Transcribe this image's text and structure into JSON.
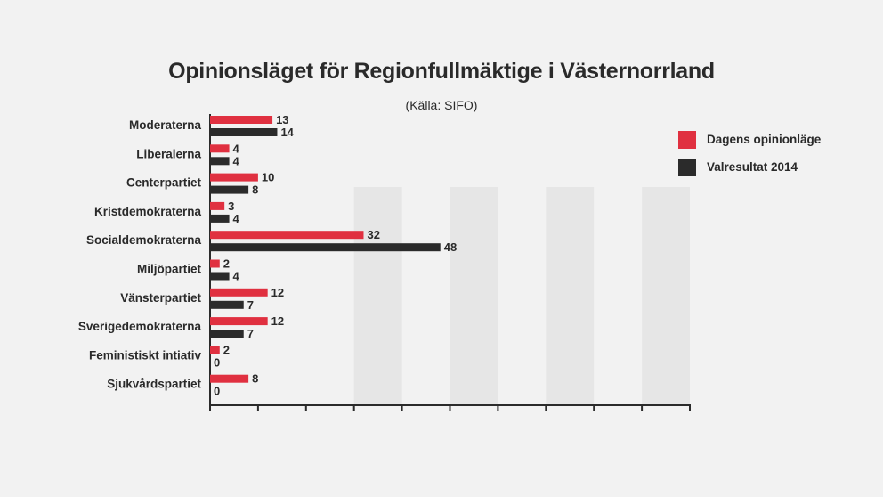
{
  "chart_data": {
    "type": "bar",
    "orientation": "horizontal",
    "title": "Opinionsläget för Regionfullmäktige i Västernorrland",
    "subtitle": "(Källa: SIFO)",
    "categories": [
      "Moderaterna",
      "Liberalerna",
      "Centerpartiet",
      "Kristdemokraterna",
      "Socialdemokraterna",
      "Miljöpartiet",
      "Vänsterpartiet",
      "Sverigedemokraterna",
      "Feministiskt intiativ",
      "Sjukvårdspartiet"
    ],
    "series": [
      {
        "name": "Dagens opinionläge",
        "color": "#e03040",
        "values": [
          13,
          4,
          10,
          3,
          32,
          2,
          12,
          12,
          2,
          8
        ]
      },
      {
        "name": "Valresultat 2014",
        "color": "#2b2b2b",
        "values": [
          14,
          4,
          8,
          4,
          48,
          4,
          7,
          7,
          0,
          0
        ]
      }
    ],
    "xlim": [
      0,
      100
    ],
    "grid": "alternating vertical bands",
    "legend": "right"
  }
}
